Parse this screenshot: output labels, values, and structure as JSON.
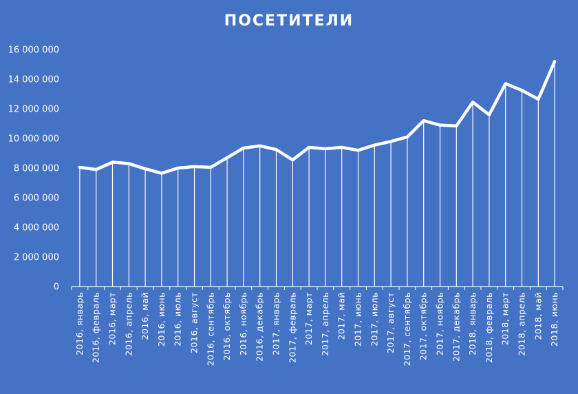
{
  "chart_data": {
    "type": "line",
    "title": "ПОСЕТИТЕЛИ",
    "xlabel": "",
    "ylabel": "",
    "ylim": [
      0,
      16000000
    ],
    "yticks": [
      0,
      2000000,
      4000000,
      6000000,
      8000000,
      10000000,
      12000000,
      14000000,
      16000000
    ],
    "ytick_labels": [
      "0",
      "2 000 000",
      "4 000 000",
      "6 000 000",
      "8 000 000",
      "10 000 000",
      "12 000 000",
      "14 000 000",
      "16 000 000"
    ],
    "drop_lines": true,
    "grid": false,
    "legend": "none",
    "line_color": "#FFFFFF",
    "background": "#4472C4",
    "categories": [
      "2016, январь",
      "2016, февраль",
      "2016, март",
      "2016, апрель",
      "2016, май",
      "2016, июнь",
      "2016, июль",
      "2016, август",
      "2016, сентябрь",
      "2016, октябрь",
      "2016, ноябрь",
      "2016, декабрь",
      "2017, январь",
      "2017, февраль",
      "2017, март",
      "2017, апрель",
      "2017, май",
      "2017, июнь",
      "2017, июль",
      "2017, август",
      "2017, сентябрь",
      "2017, октябрь",
      "2017, ноябрь",
      "2017, декабрь",
      "2018, январь",
      "2018, февраль",
      "2018, март",
      "2018, апрель",
      "2018, май",
      "2018, июнь"
    ],
    "series": [
      {
        "values": [
          8050000,
          7900000,
          8400000,
          8300000,
          7950000,
          7650000,
          8000000,
          8100000,
          8050000,
          8700000,
          9350000,
          9500000,
          9250000,
          8550000,
          9400000,
          9300000,
          9400000,
          9200000,
          9550000,
          9800000,
          10100000,
          11200000,
          10900000,
          10850000,
          12450000,
          11600000,
          13700000,
          13250000,
          12650000,
          15200000
        ]
      }
    ]
  }
}
